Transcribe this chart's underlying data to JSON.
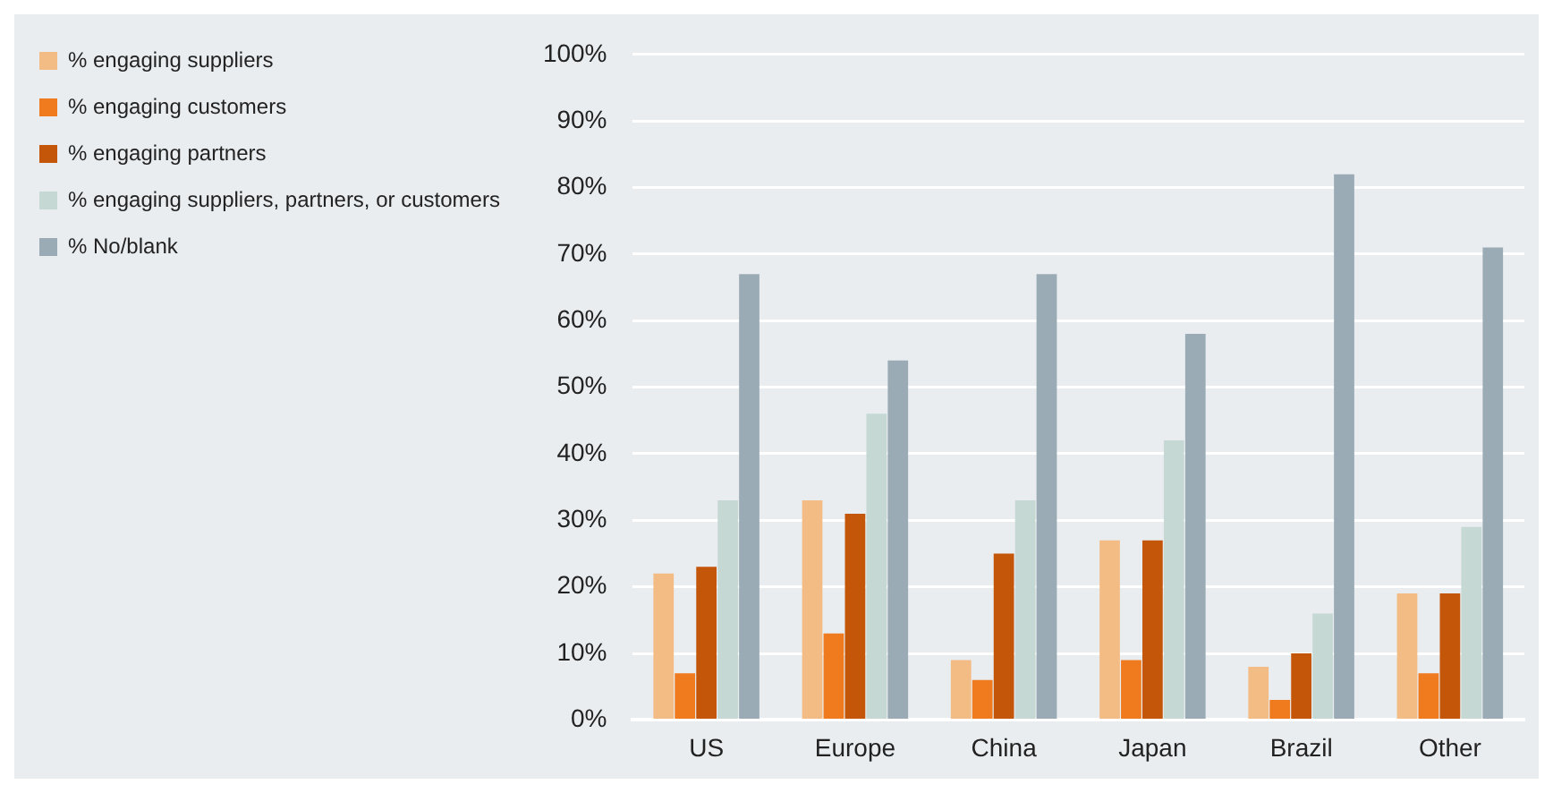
{
  "chart_data": {
    "type": "bar",
    "categories": [
      "US",
      "Europe",
      "China",
      "Japan",
      "Brazil",
      "Other"
    ],
    "series": [
      {
        "name": "% engaging suppliers",
        "color": "#f4bc85",
        "values": [
          22,
          33,
          9,
          27,
          8,
          19
        ]
      },
      {
        "name": "% engaging customers",
        "color": "#f07a1e",
        "values": [
          7,
          13,
          6,
          9,
          3,
          7
        ]
      },
      {
        "name": "% engaging partners",
        "color": "#c4560a",
        "values": [
          23,
          31,
          25,
          27,
          10,
          19
        ]
      },
      {
        "name": "% engaging suppliers, partners, or customers",
        "color": "#c5d8d3",
        "values": [
          33,
          46,
          33,
          42,
          16,
          29
        ]
      },
      {
        "name": "% No/blank",
        "color": "#9aabb5",
        "values": [
          67,
          54,
          67,
          58,
          82,
          71
        ]
      }
    ],
    "ylim": [
      0,
      100
    ],
    "yticks": [
      {
        "value": 0,
        "label": "0%"
      },
      {
        "value": 10,
        "label": "10%"
      },
      {
        "value": 20,
        "label": "20%"
      },
      {
        "value": 30,
        "label": "30%"
      },
      {
        "value": 40,
        "label": "40%"
      },
      {
        "value": 50,
        "label": "50%"
      },
      {
        "value": 60,
        "label": "60%"
      },
      {
        "value": 70,
        "label": "70%"
      },
      {
        "value": 80,
        "label": "80%"
      },
      {
        "value": 90,
        "label": "90%"
      },
      {
        "value": 100,
        "label": "100%"
      }
    ],
    "grid": "y",
    "legend": "left"
  }
}
